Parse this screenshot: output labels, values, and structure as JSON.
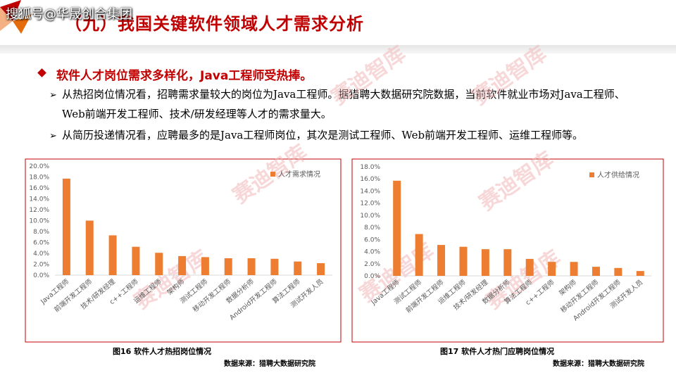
{
  "header": {
    "title": "（九）我国关键软件领域人才需求分析",
    "account": "搜狐号@华晟创合集团"
  },
  "bullet": "软件人才岗位需求多样化，Java工程师受热捧。",
  "points": [
    "从热招岗位情况看，招聘需求量较大的岗位为Java工程师。据猎聘大数据研究院数据，当前软件就业市场对Java工程师、Web前端开发工程师、技术/研发经理等人才的需求量大。",
    "从简历投递情况看，应聘最多的是Java工程师岗位，其次是测试工程师、Web前端开发工程师、运维工程师等。"
  ],
  "watermark": "赛迪智库",
  "chart_data": [
    {
      "type": "bar",
      "caption": "图16 软件人才热招岗位情况",
      "source": "数据来源：猎聘大数据研究院",
      "categories": [
        "Java工程师",
        "前端开发工程师",
        "技术/研发经理",
        "c++工程师",
        "运维工程师",
        "架构师",
        "测试工程师",
        "移动开发工程师",
        "数据分析师",
        "Android开发工程师",
        "算法工程师",
        "测试开发人员"
      ],
      "series": [
        {
          "name": "人才需求情况",
          "color": "#ed7d31",
          "values": [
            17.7,
            10.0,
            7.3,
            5.2,
            4.1,
            3.5,
            3.3,
            3.1,
            3.1,
            3.0,
            2.5,
            2.2
          ]
        }
      ],
      "ylim": [
        0,
        20
      ],
      "yticks": [
        {
          "value": 0,
          "label": "0.0%"
        },
        {
          "value": 2,
          "label": "2.0%"
        },
        {
          "value": 4,
          "label": "4.0%"
        },
        {
          "value": 6,
          "label": "6.0%"
        },
        {
          "value": 8,
          "label": "8.0%"
        },
        {
          "value": 10,
          "label": "10.0%"
        },
        {
          "value": 12,
          "label": "12.0%"
        },
        {
          "value": 14,
          "label": "14.0%"
        },
        {
          "value": 16,
          "label": "16.0%"
        },
        {
          "value": 18,
          "label": "18.0%"
        },
        {
          "value": 20,
          "label": "20.0%"
        }
      ],
      "legend": "upper right"
    },
    {
      "type": "bar",
      "caption": "图17 软件人才热门应聘岗位情况",
      "source": "数据来源：猎聘大数据研究院",
      "categories": [
        "Java工程师",
        "测试工程师",
        "前端开发工程师",
        "运维工程师",
        "技术/研发经理",
        "数据分析师",
        "算法工程师",
        "c++工程师",
        "架构师",
        "移动开发工程师",
        "Android开发工程师",
        "测试开发人员"
      ],
      "series": [
        {
          "name": "人才供给情况",
          "color": "#ed7d31",
          "values": [
            15.7,
            6.9,
            5.1,
            4.8,
            4.4,
            4.4,
            2.8,
            2.3,
            2.3,
            1.5,
            1.3,
            0.8
          ]
        }
      ],
      "ylim": [
        0,
        18
      ],
      "yticks": [
        {
          "value": 0,
          "label": "0.0%"
        },
        {
          "value": 2,
          "label": "2.0%"
        },
        {
          "value": 4,
          "label": "4.0%"
        },
        {
          "value": 6,
          "label": "6.0%"
        },
        {
          "value": 8,
          "label": "8.0%"
        },
        {
          "value": 10,
          "label": "10.0%"
        },
        {
          "value": 12,
          "label": "12.0%"
        },
        {
          "value": 14,
          "label": "14.0%"
        },
        {
          "value": 16,
          "label": "16.0%"
        },
        {
          "value": 18,
          "label": "18.0%"
        }
      ],
      "legend": "upper right"
    }
  ]
}
